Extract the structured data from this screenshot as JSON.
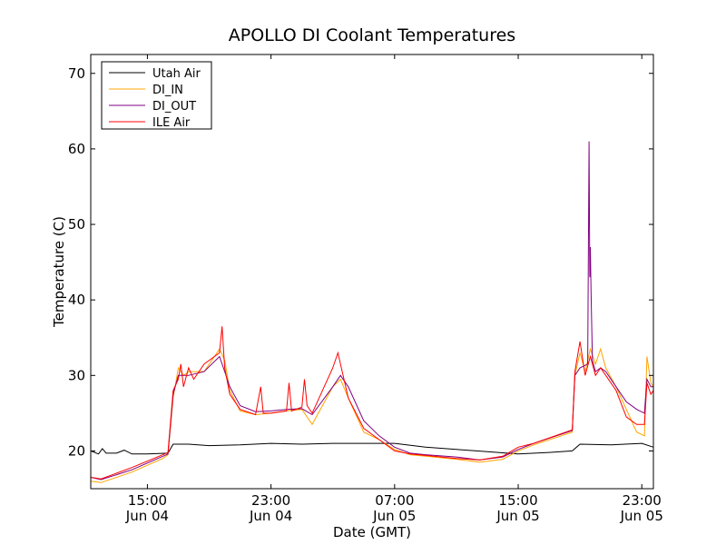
{
  "chart_data": {
    "type": "line",
    "title": "APOLLO DI Coolant Temperatures",
    "xlabel": "Date (GMT)",
    "ylabel": "Temperature (C)",
    "xlim": [
      "2014-06-04T11:20",
      "2014-06-05T23:45"
    ],
    "ylim": [
      15,
      72.5
    ],
    "x_ticks": [
      {
        "t": "2014-06-04T15:00",
        "line1": "15:00",
        "line2": "Jun 04"
      },
      {
        "t": "2014-06-04T23:00",
        "line1": "23:00",
        "line2": "Jun 04"
      },
      {
        "t": "2014-06-05T07:00",
        "line1": "07:00",
        "line2": "Jun 05"
      },
      {
        "t": "2014-06-05T15:00",
        "line1": "15:00",
        "line2": "Jun 05"
      },
      {
        "t": "2014-06-05T23:00",
        "line1": "23:00",
        "line2": "Jun 05"
      }
    ],
    "y_ticks": [
      20,
      30,
      40,
      50,
      60,
      70
    ],
    "legend_position": "top-left",
    "grid": false,
    "series": [
      {
        "name": "Utah Air",
        "color": "#000000",
        "points": [
          [
            "2014-06-04T11:20",
            20.0
          ],
          [
            "2014-06-04T11:50",
            19.6
          ],
          [
            "2014-06-04T12:05",
            20.3
          ],
          [
            "2014-06-04T12:20",
            19.7
          ],
          [
            "2014-06-04T13:00",
            19.7
          ],
          [
            "2014-06-04T13:30",
            20.1
          ],
          [
            "2014-06-04T14:00",
            19.6
          ],
          [
            "2014-06-04T15:00",
            19.6
          ],
          [
            "2014-06-04T16:20",
            19.7
          ],
          [
            "2014-06-04T16:40",
            20.9
          ],
          [
            "2014-06-04T17:40",
            20.9
          ],
          [
            "2014-06-04T19:00",
            20.7
          ],
          [
            "2014-06-04T21:00",
            20.8
          ],
          [
            "2014-06-04T23:00",
            21.0
          ],
          [
            "2014-06-05T01:00",
            20.9
          ],
          [
            "2014-06-05T03:00",
            21.0
          ],
          [
            "2014-06-05T05:00",
            21.0
          ],
          [
            "2014-06-05T07:00",
            21.0
          ],
          [
            "2014-06-05T09:00",
            20.5
          ],
          [
            "2014-06-05T11:00",
            20.2
          ],
          [
            "2014-06-05T13:00",
            19.9
          ],
          [
            "2014-06-05T15:00",
            19.6
          ],
          [
            "2014-06-05T17:00",
            19.8
          ],
          [
            "2014-06-05T18:30",
            20.0
          ],
          [
            "2014-06-05T19:00",
            20.9
          ],
          [
            "2014-06-05T21:00",
            20.8
          ],
          [
            "2014-06-05T23:00",
            21.0
          ],
          [
            "2014-06-05T23:45",
            20.5
          ]
        ]
      },
      {
        "name": "DI_IN",
        "color": "#ffa500",
        "points": [
          [
            "2014-06-04T11:20",
            16.0
          ],
          [
            "2014-06-04T12:00",
            15.8
          ],
          [
            "2014-06-04T14:00",
            17.2
          ],
          [
            "2014-06-04T16:00",
            19.0
          ],
          [
            "2014-06-04T16:20",
            19.5
          ],
          [
            "2014-06-04T16:40",
            27.0
          ],
          [
            "2014-06-04T17:00",
            31.0
          ],
          [
            "2014-06-04T17:20",
            30.0
          ],
          [
            "2014-06-04T17:40",
            30.5
          ],
          [
            "2014-06-04T18:40",
            30.5
          ],
          [
            "2014-06-04T19:40",
            33.5
          ],
          [
            "2014-06-04T20:00",
            32.0
          ],
          [
            "2014-06-04T20:20",
            28.0
          ],
          [
            "2014-06-04T21:00",
            25.3
          ],
          [
            "2014-06-04T22:00",
            24.8
          ],
          [
            "2014-06-04T23:00",
            25.0
          ],
          [
            "2014-06-05T00:00",
            25.3
          ],
          [
            "2014-06-05T01:00",
            25.5
          ],
          [
            "2014-06-05T01:40",
            23.5
          ],
          [
            "2014-06-05T03:00",
            28.5
          ],
          [
            "2014-06-05T03:30",
            29.5
          ],
          [
            "2014-06-05T04:00",
            27.0
          ],
          [
            "2014-06-05T05:00",
            22.5
          ],
          [
            "2014-06-05T06:00",
            21.5
          ],
          [
            "2014-06-05T07:00",
            20.2
          ],
          [
            "2014-06-05T08:00",
            19.5
          ],
          [
            "2014-06-05T09:00",
            19.3
          ],
          [
            "2014-06-05T11:00",
            18.9
          ],
          [
            "2014-06-05T12:30",
            18.5
          ],
          [
            "2014-06-05T14:00",
            18.9
          ],
          [
            "2014-06-05T15:00",
            20.0
          ],
          [
            "2014-06-05T16:00",
            20.8
          ],
          [
            "2014-06-05T18:30",
            22.5
          ],
          [
            "2014-06-05T18:40",
            30.0
          ],
          [
            "2014-06-05T19:00",
            33.0
          ],
          [
            "2014-06-05T19:20",
            30.5
          ],
          [
            "2014-06-05T19:40",
            33.5
          ],
          [
            "2014-06-05T20:00",
            31.5
          ],
          [
            "2014-06-05T20:20",
            33.5
          ],
          [
            "2014-06-05T20:40",
            31.0
          ],
          [
            "2014-06-05T21:20",
            28.5
          ],
          [
            "2014-06-05T22:00",
            25.5
          ],
          [
            "2014-06-05T22:40",
            22.5
          ],
          [
            "2014-06-05T23:10",
            22.0
          ],
          [
            "2014-06-05T23:20",
            32.5
          ],
          [
            "2014-06-05T23:35",
            29.0
          ],
          [
            "2014-06-05T23:45",
            28.5
          ]
        ]
      },
      {
        "name": "DI_OUT",
        "color": "#800080",
        "points": [
          [
            "2014-06-04T11:20",
            16.5
          ],
          [
            "2014-06-04T12:00",
            16.2
          ],
          [
            "2014-06-04T14:00",
            17.5
          ],
          [
            "2014-06-04T16:00",
            19.3
          ],
          [
            "2014-06-04T16:20",
            19.6
          ],
          [
            "2014-06-04T16:40",
            27.5
          ],
          [
            "2014-06-04T17:00",
            30.0
          ],
          [
            "2014-06-04T17:40",
            30.0
          ],
          [
            "2014-06-04T18:40",
            30.5
          ],
          [
            "2014-06-04T19:40",
            32.5
          ],
          [
            "2014-06-04T20:00",
            30.5
          ],
          [
            "2014-06-04T20:20",
            28.5
          ],
          [
            "2014-06-04T21:00",
            26.0
          ],
          [
            "2014-06-04T22:00",
            25.2
          ],
          [
            "2014-06-04T23:00",
            25.3
          ],
          [
            "2014-06-05T00:00",
            25.5
          ],
          [
            "2014-06-05T01:00",
            25.6
          ],
          [
            "2014-06-05T01:40",
            24.8
          ],
          [
            "2014-06-05T03:00",
            28.5
          ],
          [
            "2014-06-05T03:30",
            30.0
          ],
          [
            "2014-06-05T04:00",
            28.5
          ],
          [
            "2014-06-05T05:00",
            24.0
          ],
          [
            "2014-06-05T06:00",
            22.0
          ],
          [
            "2014-06-05T07:00",
            20.5
          ],
          [
            "2014-06-05T08:00",
            19.7
          ],
          [
            "2014-06-05T09:00",
            19.5
          ],
          [
            "2014-06-05T11:00",
            19.2
          ],
          [
            "2014-06-05T12:30",
            18.8
          ],
          [
            "2014-06-05T14:00",
            19.2
          ],
          [
            "2014-06-05T15:00",
            20.2
          ],
          [
            "2014-06-05T16:00",
            21.0
          ],
          [
            "2014-06-05T18:30",
            22.7
          ],
          [
            "2014-06-05T18:40",
            30.0
          ],
          [
            "2014-06-05T19:00",
            31.0
          ],
          [
            "2014-06-05T19:30",
            31.5
          ],
          [
            "2014-06-05T19:35",
            61.0
          ],
          [
            "2014-06-05T19:38",
            43.0
          ],
          [
            "2014-06-05T19:40",
            47.0
          ],
          [
            "2014-06-05T19:43",
            41.0
          ],
          [
            "2014-06-05T19:48",
            32.0
          ],
          [
            "2014-06-05T20:00",
            30.5
          ],
          [
            "2014-06-05T20:20",
            31.0
          ],
          [
            "2014-06-05T20:40",
            30.5
          ],
          [
            "2014-06-05T21:20",
            28.5
          ],
          [
            "2014-06-05T22:00",
            26.5
          ],
          [
            "2014-06-05T22:40",
            25.5
          ],
          [
            "2014-06-05T23:10",
            25.0
          ],
          [
            "2014-06-05T23:20",
            29.5
          ],
          [
            "2014-06-05T23:35",
            28.5
          ],
          [
            "2014-06-05T23:45",
            28.5
          ]
        ]
      },
      {
        "name": "ILE Air",
        "color": "#ff0000",
        "points": [
          [
            "2014-06-04T11:20",
            16.5
          ],
          [
            "2014-06-04T12:00",
            16.3
          ],
          [
            "2014-06-04T14:00",
            17.8
          ],
          [
            "2014-06-04T16:00",
            19.5
          ],
          [
            "2014-06-04T16:20",
            19.8
          ],
          [
            "2014-06-04T16:40",
            28.0
          ],
          [
            "2014-06-04T17:00",
            29.5
          ],
          [
            "2014-06-04T17:10",
            31.5
          ],
          [
            "2014-06-04T17:20",
            28.5
          ],
          [
            "2014-06-04T17:40",
            31.0
          ],
          [
            "2014-06-04T18:00",
            29.5
          ],
          [
            "2014-06-04T18:40",
            31.5
          ],
          [
            "2014-06-04T19:40",
            33.0
          ],
          [
            "2014-06-04T19:50",
            36.5
          ],
          [
            "2014-06-04T20:00",
            31.0
          ],
          [
            "2014-06-04T20:20",
            27.5
          ],
          [
            "2014-06-04T21:00",
            25.5
          ],
          [
            "2014-06-04T22:00",
            24.8
          ],
          [
            "2014-06-04T22:20",
            28.5
          ],
          [
            "2014-06-04T22:30",
            25.0
          ],
          [
            "2014-06-04T23:00",
            25.0
          ],
          [
            "2014-06-05T00:00",
            25.3
          ],
          [
            "2014-06-05T00:10",
            29.0
          ],
          [
            "2014-06-05T00:20",
            25.3
          ],
          [
            "2014-06-05T01:00",
            25.8
          ],
          [
            "2014-06-05T01:10",
            29.5
          ],
          [
            "2014-06-05T01:20",
            26.0
          ],
          [
            "2014-06-05T01:40",
            25.0
          ],
          [
            "2014-06-05T03:00",
            31.0
          ],
          [
            "2014-06-05T03:20",
            33.0
          ],
          [
            "2014-06-05T03:30",
            31.5
          ],
          [
            "2014-06-05T04:00",
            27.0
          ],
          [
            "2014-06-05T05:00",
            23.0
          ],
          [
            "2014-06-05T06:00",
            21.5
          ],
          [
            "2014-06-05T07:00",
            20.0
          ],
          [
            "2014-06-05T08:00",
            19.6
          ],
          [
            "2014-06-05T09:00",
            19.4
          ],
          [
            "2014-06-05T11:00",
            19.0
          ],
          [
            "2014-06-05T12:30",
            18.8
          ],
          [
            "2014-06-05T14:00",
            19.3
          ],
          [
            "2014-06-05T15:00",
            20.5
          ],
          [
            "2014-06-05T16:00",
            21.0
          ],
          [
            "2014-06-05T18:30",
            22.8
          ],
          [
            "2014-06-05T18:40",
            30.5
          ],
          [
            "2014-06-05T19:00",
            34.5
          ],
          [
            "2014-06-05T19:20",
            30.0
          ],
          [
            "2014-06-05T19:40",
            32.5
          ],
          [
            "2014-06-05T20:00",
            30.0
          ],
          [
            "2014-06-05T20:20",
            31.0
          ],
          [
            "2014-06-05T20:40",
            30.0
          ],
          [
            "2014-06-05T21:20",
            28.0
          ],
          [
            "2014-06-05T22:00",
            24.5
          ],
          [
            "2014-06-05T22:40",
            23.5
          ],
          [
            "2014-06-05T23:10",
            23.5
          ],
          [
            "2014-06-05T23:20",
            29.0
          ],
          [
            "2014-06-05T23:35",
            27.5
          ],
          [
            "2014-06-05T23:45",
            28.0
          ]
        ]
      }
    ]
  }
}
